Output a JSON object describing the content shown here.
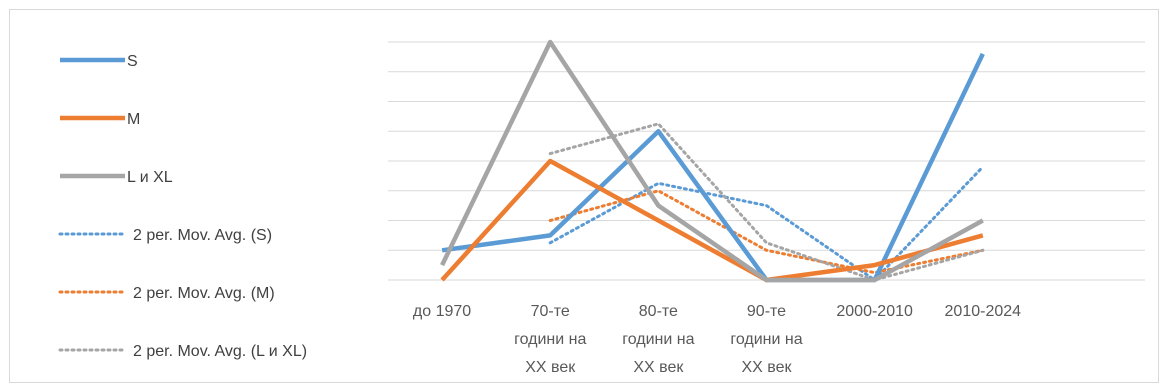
{
  "chart_data": {
    "type": "line",
    "categories": [
      [
        "до 1970"
      ],
      [
        "70-те",
        "години на",
        "XX век"
      ],
      [
        "80-те",
        "години на",
        "XX век"
      ],
      [
        "90-те",
        "години на",
        "XX век"
      ],
      [
        "2000-2010"
      ],
      [
        "2010-2024"
      ]
    ],
    "series": [
      {
        "name": "S",
        "color": "#5b9bd5",
        "values": [
          1,
          1.5,
          5,
          0,
          0,
          7.6
        ]
      },
      {
        "name": "M",
        "color": "#ed7d31",
        "values": [
          0,
          4,
          2,
          0,
          0.5,
          1.5
        ]
      },
      {
        "name": "L и XL",
        "color": "#a5a5a5",
        "values": [
          0.5,
          8,
          2.5,
          0,
          0,
          2
        ]
      }
    ],
    "trendlines": [
      {
        "name": "2 per. Mov. Avg. (S)",
        "color": "#5b9bd5",
        "x": [
          1,
          2,
          3,
          4,
          5
        ],
        "values": [
          1.25,
          3.25,
          2.5,
          0,
          3.8
        ]
      },
      {
        "name": "2 per. Mov. Avg. (M)",
        "color": "#ed7d31",
        "x": [
          1,
          2,
          3,
          4,
          5
        ],
        "values": [
          2,
          3,
          1,
          0.25,
          1
        ]
      },
      {
        "name": "2 per. Mov. Avg. (L и XL)",
        "color": "#a5a5a5",
        "x": [
          1,
          2,
          3,
          4,
          5
        ],
        "values": [
          4.25,
          5.25,
          1.25,
          0,
          1
        ]
      }
    ],
    "ylim": [
      0,
      8
    ],
    "grid": true,
    "legend": "left"
  }
}
